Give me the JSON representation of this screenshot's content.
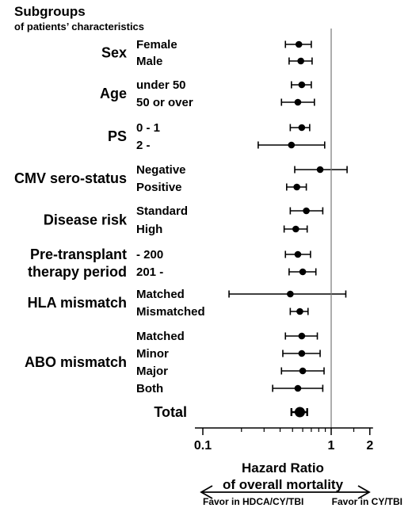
{
  "chart_data": {
    "type": "forest",
    "title": "Subgroups",
    "subtitle": "of patients’ characteristics",
    "xlabel_line1": "Hazard Ratio",
    "xlabel_line2": "of overall mortality",
    "x_scale": "log",
    "xlim": [
      0.1,
      2
    ],
    "x_ticks": [
      {
        "value": 0.1,
        "label": "0.1"
      },
      {
        "value": 1,
        "label": "1"
      },
      {
        "value": 2,
        "label": "2"
      }
    ],
    "reference_line": 1,
    "favor_left": "Favor in HDCA/CY/TBI",
    "favor_right": "Favor in CY/TBI",
    "groups": [
      {
        "label": [
          "Sex"
        ],
        "rows": [
          {
            "label": "Female",
            "hr": 0.56,
            "lo": 0.44,
            "hi": 0.7
          },
          {
            "label": "Male",
            "hr": 0.58,
            "lo": 0.47,
            "hi": 0.71
          }
        ]
      },
      {
        "label": [
          "Age"
        ],
        "rows": [
          {
            "label": "under 50",
            "hr": 0.59,
            "lo": 0.49,
            "hi": 0.7
          },
          {
            "label": "50 or over",
            "hr": 0.55,
            "lo": 0.41,
            "hi": 0.74
          }
        ]
      },
      {
        "label": [
          "PS"
        ],
        "rows": [
          {
            "label": "0 - 1",
            "hr": 0.59,
            "lo": 0.48,
            "hi": 0.68
          },
          {
            "label": "2 -",
            "hr": 0.49,
            "lo": 0.27,
            "hi": 0.89
          }
        ]
      },
      {
        "label": [
          "CMV sero-status"
        ],
        "rows": [
          {
            "label": "Negative",
            "hr": 0.82,
            "lo": 0.52,
            "hi": 1.33
          },
          {
            "label": "Positive",
            "hr": 0.54,
            "lo": 0.45,
            "hi": 0.64
          }
        ]
      },
      {
        "label": [
          "Disease risk"
        ],
        "rows": [
          {
            "label": "Standard",
            "hr": 0.64,
            "lo": 0.48,
            "hi": 0.86
          },
          {
            "label": "High",
            "hr": 0.53,
            "lo": 0.43,
            "hi": 0.65
          }
        ]
      },
      {
        "label": [
          "Pre-transplant",
          "therapy period"
        ],
        "rows": [
          {
            "label": "- 200",
            "hr": 0.55,
            "lo": 0.44,
            "hi": 0.69
          },
          {
            "label": "201 -",
            "hr": 0.6,
            "lo": 0.47,
            "hi": 0.76
          }
        ]
      },
      {
        "label": [
          "HLA mismatch"
        ],
        "rows": [
          {
            "label": "Matched",
            "hr": 0.48,
            "lo": 0.16,
            "hi": 1.3
          },
          {
            "label": "Mismatched",
            "hr": 0.57,
            "lo": 0.48,
            "hi": 0.66
          }
        ]
      },
      {
        "label": [
          "ABO mismatch"
        ],
        "rows": [
          {
            "label": "Matched",
            "hr": 0.59,
            "lo": 0.44,
            "hi": 0.78
          },
          {
            "label": "Minor",
            "hr": 0.59,
            "lo": 0.42,
            "hi": 0.82
          },
          {
            "label": "Major",
            "hr": 0.6,
            "lo": 0.41,
            "hi": 0.88
          },
          {
            "label": "Both",
            "hr": 0.55,
            "lo": 0.35,
            "hi": 0.86
          }
        ]
      }
    ],
    "total": {
      "label": "Total",
      "hr": 0.57,
      "lo": 0.49,
      "hi": 0.65
    }
  }
}
